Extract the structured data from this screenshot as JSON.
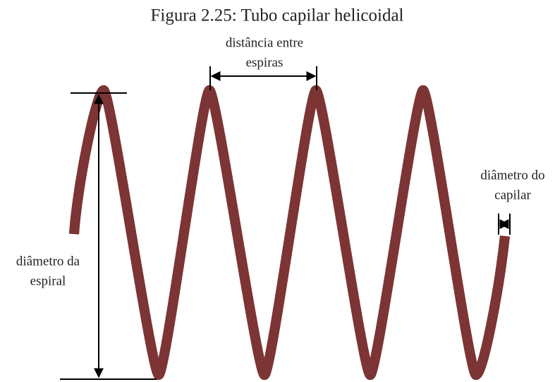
{
  "title": "Figura 2.25: Tubo capilar helicoidal",
  "labels": {
    "pitch": [
      "distância entre",
      "espiras"
    ],
    "tube_diameter": [
      "diâmetro do",
      "capilar"
    ],
    "coil_diameter": [
      "diâmetro da",
      "espiral"
    ]
  }
}
